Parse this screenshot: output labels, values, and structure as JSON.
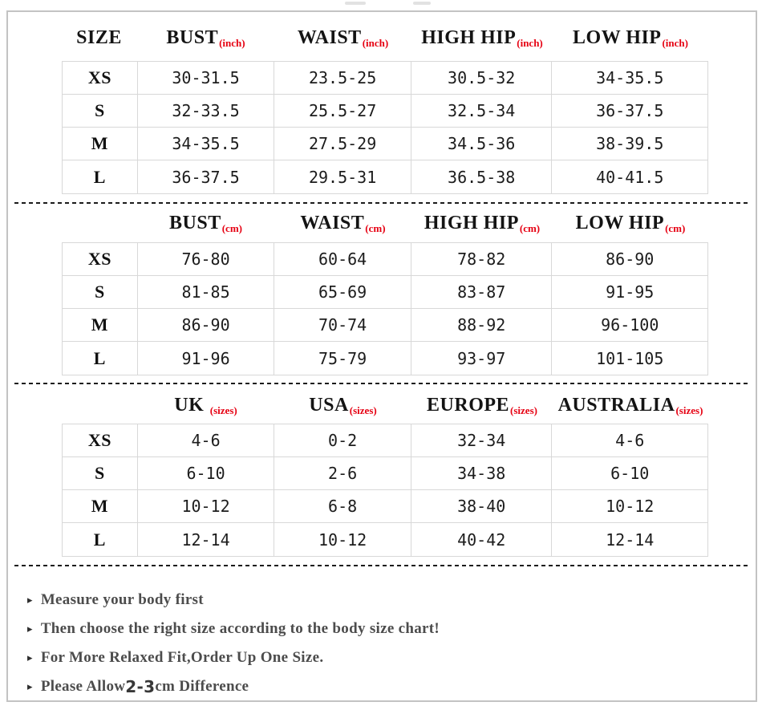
{
  "colors": {
    "accent_red": "#e60012",
    "frame_gray": "#c3c3c3",
    "grid_gray": "#d8d8d8",
    "value_text": "#1c1c1c",
    "note_text": "#4c4c4c"
  },
  "chart_data": [
    {
      "type": "table",
      "header": [
        {
          "label": "SIZE",
          "unit": ""
        },
        {
          "label": "BUST",
          "unit": "(inch)"
        },
        {
          "label": "WAIST",
          "unit": "(inch)"
        },
        {
          "label": "HIGH HIP",
          "unit": "(inch)"
        },
        {
          "label": "LOW HIP",
          "unit": "(inch)"
        }
      ],
      "rows": [
        {
          "size": "XS",
          "values": [
            "30-31.5",
            "23.5-25",
            "30.5-32",
            "34-35.5"
          ]
        },
        {
          "size": "S",
          "values": [
            "32-33.5",
            "25.5-27",
            "32.5-34",
            "36-37.5"
          ]
        },
        {
          "size": "M",
          "values": [
            "34-35.5",
            "27.5-29",
            "34.5-36",
            "38-39.5"
          ]
        },
        {
          "size": "L",
          "values": [
            "36-37.5",
            "29.5-31",
            "36.5-38",
            "40-41.5"
          ]
        }
      ]
    },
    {
      "type": "table",
      "header": [
        {
          "label": "",
          "unit": ""
        },
        {
          "label": "BUST",
          "unit": "(cm)"
        },
        {
          "label": "WAIST",
          "unit": "(cm)"
        },
        {
          "label": "HIGH HIP",
          "unit": "(cm)"
        },
        {
          "label": "LOW HIP",
          "unit": "(cm)"
        }
      ],
      "rows": [
        {
          "size": "XS",
          "values": [
            "76-80",
            "60-64",
            "78-82",
            "86-90"
          ]
        },
        {
          "size": "S",
          "values": [
            "81-85",
            "65-69",
            "83-87",
            "91-95"
          ]
        },
        {
          "size": "M",
          "values": [
            "86-90",
            "70-74",
            "88-92",
            "96-100"
          ]
        },
        {
          "size": "L",
          "values": [
            "91-96",
            "75-79",
            "93-97",
            "101-105"
          ]
        }
      ]
    },
    {
      "type": "table",
      "header": [
        {
          "label": "",
          "unit": ""
        },
        {
          "label": "UK ",
          "unit": "(sizes)"
        },
        {
          "label": "USA",
          "unit": "(sizes)"
        },
        {
          "label": "EUROPE",
          "unit": "(sizes)"
        },
        {
          "label": "AUSTRALIA",
          "unit": "(sizes)"
        }
      ],
      "rows": [
        {
          "size": "XS",
          "values": [
            "4-6",
            "0-2",
            "32-34",
            "4-6"
          ]
        },
        {
          "size": "S",
          "values": [
            "6-10",
            "2-6",
            "34-38",
            "6-10"
          ]
        },
        {
          "size": "M",
          "values": [
            "10-12",
            "6-8",
            "38-40",
            "10-12"
          ]
        },
        {
          "size": "L",
          "values": [
            "12-14",
            "10-12",
            "40-42",
            "12-14"
          ]
        }
      ]
    }
  ],
  "notes_bullet": "▸",
  "notes": [
    {
      "prefix": "Measure your body first",
      "highlight": "",
      "suffix": ""
    },
    {
      "prefix": "Then choose the right size according to the body size chart!",
      "highlight": "",
      "suffix": ""
    },
    {
      "prefix": "For More Relaxed Fit,Order Up One Size.",
      "highlight": "",
      "suffix": ""
    },
    {
      "prefix": "Please Allow ",
      "highlight": "2-3",
      "suffix": "cm Difference"
    }
  ]
}
